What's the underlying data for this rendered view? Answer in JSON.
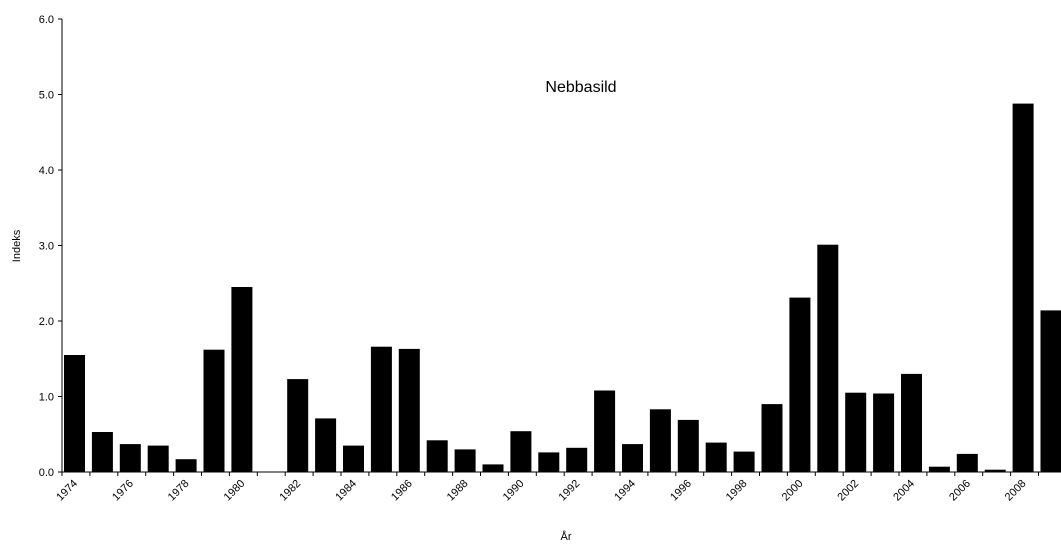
{
  "chart_data": {
    "type": "bar",
    "title": "Nebbasild",
    "xlabel": "År",
    "ylabel": "Indeks",
    "ylim": [
      0,
      6
    ],
    "yticks": [
      "0.0",
      "1.0",
      "2.0",
      "3.0",
      "4.0",
      "5.0",
      "6.0"
    ],
    "xtick_labels": [
      "1974",
      "1976",
      "1978",
      "1980",
      "1982",
      "1984",
      "1986",
      "1988",
      "1990",
      "1992",
      "1994",
      "1996",
      "1998",
      "2000",
      "2002",
      "2004",
      "2006",
      "2008"
    ],
    "categories": [
      "1974",
      "1975",
      "1976",
      "1977",
      "1978",
      "1979",
      "1980",
      "1981",
      "1982",
      "1983",
      "1984",
      "1985",
      "1986",
      "1987",
      "1988",
      "1989",
      "1990",
      "1991",
      "1992",
      "1993",
      "1994",
      "1995",
      "1996",
      "1997",
      "1998",
      "1999",
      "2000",
      "2001",
      "2002",
      "2003",
      "2004",
      "2005",
      "2006",
      "2007",
      "2008",
      "2009"
    ],
    "values": [
      1.55,
      0.53,
      0.37,
      0.35,
      0.17,
      1.62,
      2.45,
      0.0,
      1.23,
      0.71,
      0.35,
      1.66,
      1.63,
      0.42,
      0.3,
      0.1,
      0.54,
      0.26,
      0.32,
      1.08,
      0.37,
      0.83,
      0.69,
      0.39,
      0.27,
      0.9,
      2.31,
      3.01,
      1.05,
      1.04,
      1.3,
      0.07,
      0.24,
      0.03,
      4.88,
      2.14
    ],
    "bar_color": "#000000",
    "grid": false,
    "legend": "none"
  }
}
